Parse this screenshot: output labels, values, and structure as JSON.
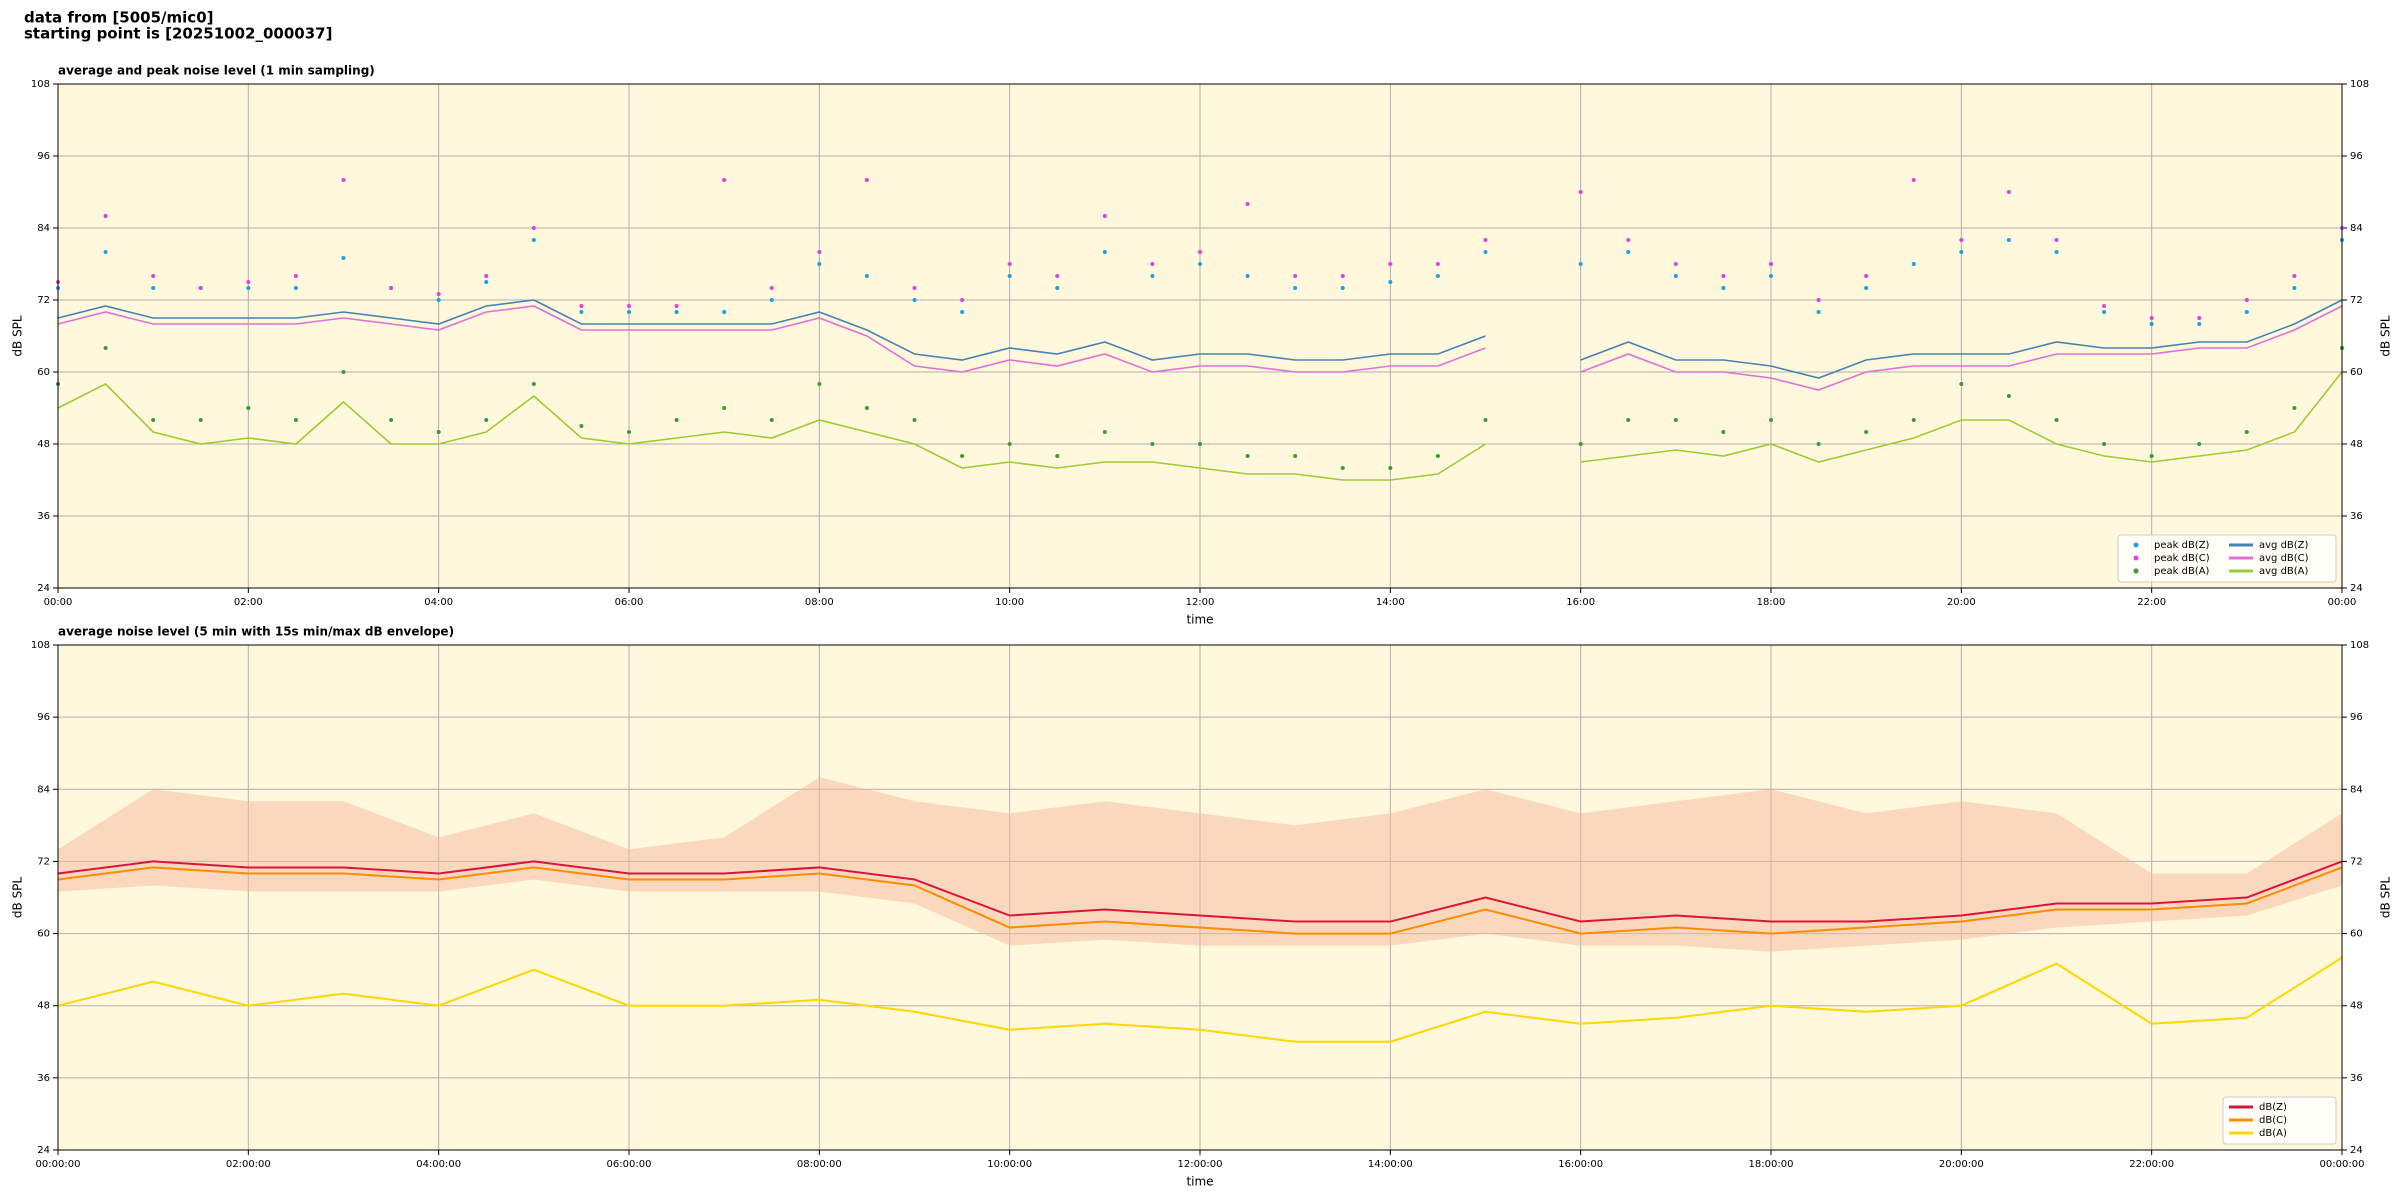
{
  "header": {
    "source": "data from [5005/mic0]",
    "start": "starting point is [20251002_000037]"
  },
  "chart_data": [
    {
      "type": "line",
      "title": "average and peak noise level (1 min sampling)",
      "x_label": "time",
      "y_label": "dB SPL",
      "y2_label": "dB SPL",
      "background": "#fff8dc",
      "grid": true,
      "legend": "lower right",
      "legend_columns": 2,
      "x": [
        0,
        0.5,
        1,
        1.5,
        2,
        2.5,
        3,
        3.5,
        4,
        4.5,
        5,
        5.5,
        6,
        6.5,
        7,
        7.5,
        8,
        8.5,
        9,
        9.5,
        10,
        10.5,
        11,
        11.5,
        12,
        12.5,
        13,
        13.5,
        14,
        14.5,
        15,
        15.5,
        16,
        16.5,
        17,
        17.5,
        18,
        18.5,
        19,
        19.5,
        20,
        20.5,
        21,
        21.5,
        22,
        22.5,
        23,
        23.5,
        24
      ],
      "xlim": [
        0,
        24
      ],
      "xticks": [
        {
          "value": 0,
          "label": "00:00"
        },
        {
          "value": 2,
          "label": "02:00"
        },
        {
          "value": 4,
          "label": "04:00"
        },
        {
          "value": 6,
          "label": "06:00"
        },
        {
          "value": 8,
          "label": "08:00"
        },
        {
          "value": 10,
          "label": "10:00"
        },
        {
          "value": 12,
          "label": "12:00"
        },
        {
          "value": 14,
          "label": "14:00"
        },
        {
          "value": 16,
          "label": "16:00"
        },
        {
          "value": 18,
          "label": "18:00"
        },
        {
          "value": 20,
          "label": "20:00"
        },
        {
          "value": 22,
          "label": "22:00"
        },
        {
          "value": 24,
          "label": "00:00"
        }
      ],
      "ylim": [
        24,
        108
      ],
      "yticks": [
        24,
        36,
        48,
        60,
        72,
        84,
        96,
        108
      ],
      "y2lim": [
        24,
        108
      ],
      "y2ticks": [
        24,
        36,
        48,
        60,
        72,
        84,
        96,
        108
      ],
      "series": [
        {
          "name": "peak dB(Z)",
          "kind": "scatter",
          "color": "#1f9fe0",
          "values": [
            74,
            80,
            74,
            74,
            74,
            74,
            79,
            74,
            72,
            75,
            82,
            70,
            70,
            70,
            70,
            72,
            78,
            76,
            72,
            70,
            76,
            74,
            80,
            76,
            78,
            76,
            74,
            74,
            75,
            76,
            80,
            null,
            78,
            80,
            76,
            74,
            76,
            70,
            74,
            78,
            80,
            82,
            80,
            70,
            68,
            68,
            70,
            74,
            82
          ]
        },
        {
          "name": "peak dB(C)",
          "kind": "scatter",
          "color": "#e040e0",
          "values": [
            75,
            86,
            76,
            74,
            75,
            76,
            92,
            74,
            73,
            76,
            84,
            71,
            71,
            71,
            92,
            74,
            80,
            92,
            74,
            72,
            78,
            76,
            86,
            78,
            80,
            88,
            76,
            76,
            78,
            78,
            82,
            null,
            90,
            82,
            78,
            76,
            78,
            72,
            76,
            92,
            82,
            90,
            82,
            71,
            69,
            69,
            72,
            76,
            84
          ]
        },
        {
          "name": "peak dB(A)",
          "kind": "scatter",
          "color": "#3a9a3a",
          "values": [
            58,
            64,
            52,
            52,
            54,
            52,
            60,
            52,
            50,
            52,
            58,
            51,
            50,
            52,
            54,
            52,
            58,
            54,
            52,
            46,
            48,
            46,
            50,
            48,
            48,
            46,
            46,
            44,
            44,
            46,
            52,
            null,
            48,
            52,
            52,
            50,
            52,
            48,
            50,
            52,
            58,
            56,
            52,
            48,
            46,
            48,
            50,
            54,
            64
          ]
        },
        {
          "name": "avg dB(Z)",
          "kind": "line",
          "color": "#4682b4",
          "values": [
            69,
            71,
            69,
            69,
            69,
            69,
            70,
            69,
            68,
            71,
            72,
            68,
            68,
            68,
            68,
            68,
            70,
            67,
            63,
            62,
            64,
            63,
            65,
            62,
            63,
            63,
            62,
            62,
            63,
            63,
            66,
            null,
            62,
            65,
            62,
            62,
            61,
            59,
            62,
            63,
            63,
            63,
            65,
            64,
            64,
            65,
            65,
            68,
            72
          ]
        },
        {
          "name": "avg dB(C)",
          "kind": "line",
          "color": "#e070d8",
          "values": [
            68,
            70,
            68,
            68,
            68,
            68,
            69,
            68,
            67,
            70,
            71,
            67,
            67,
            67,
            67,
            67,
            69,
            66,
            61,
            60,
            62,
            61,
            63,
            60,
            61,
            61,
            60,
            60,
            61,
            61,
            64,
            null,
            60,
            63,
            60,
            60,
            59,
            57,
            60,
            61,
            61,
            61,
            63,
            63,
            63,
            64,
            64,
            67,
            71
          ]
        },
        {
          "name": "avg dB(A)",
          "kind": "line",
          "color": "#9acd32",
          "values": [
            54,
            58,
            50,
            48,
            49,
            48,
            55,
            48,
            48,
            50,
            56,
            49,
            48,
            49,
            50,
            49,
            52,
            50,
            48,
            44,
            45,
            44,
            45,
            45,
            44,
            43,
            43,
            42,
            42,
            43,
            48,
            null,
            45,
            46,
            47,
            46,
            48,
            45,
            47,
            49,
            52,
            52,
            48,
            46,
            45,
            46,
            47,
            50,
            60
          ]
        }
      ]
    },
    {
      "type": "line",
      "title": "average noise level (5 min with 15s min/max dB envelope)",
      "x_label": "time",
      "y_label": "dB SPL",
      "y2_label": "dB SPL",
      "background": "#fff8dc",
      "grid": true,
      "legend": "lower right",
      "legend_columns": 1,
      "x": [
        0,
        1,
        2,
        3,
        4,
        5,
        6,
        7,
        8,
        9,
        10,
        11,
        12,
        13,
        14,
        15,
        16,
        17,
        18,
        19,
        20,
        21,
        22,
        23,
        24
      ],
      "xlim": [
        0,
        24
      ],
      "xticks": [
        {
          "value": 0,
          "label": "00:00:00"
        },
        {
          "value": 2,
          "label": "02:00:00"
        },
        {
          "value": 4,
          "label": "04:00:00"
        },
        {
          "value": 6,
          "label": "06:00:00"
        },
        {
          "value": 8,
          "label": "08:00:00"
        },
        {
          "value": 10,
          "label": "10:00:00"
        },
        {
          "value": 12,
          "label": "12:00:00"
        },
        {
          "value": 14,
          "label": "14:00:00"
        },
        {
          "value": 16,
          "label": "16:00:00"
        },
        {
          "value": 18,
          "label": "18:00:00"
        },
        {
          "value": 20,
          "label": "20:00:00"
        },
        {
          "value": 22,
          "label": "22:00:00"
        },
        {
          "value": 24,
          "label": "00:00:00"
        }
      ],
      "ylim": [
        24,
        108
      ],
      "yticks": [
        24,
        36,
        48,
        60,
        72,
        84,
        96,
        108
      ],
      "y2lim": [
        24,
        108
      ],
      "y2ticks": [
        24,
        36,
        48,
        60,
        72,
        84,
        96,
        108
      ],
      "envelope": {
        "color": "#f5b8a0",
        "upper": [
          74,
          84,
          82,
          82,
          76,
          80,
          74,
          76,
          86,
          82,
          80,
          82,
          80,
          78,
          80,
          84,
          80,
          82,
          84,
          80,
          82,
          80,
          70,
          70,
          80
        ],
        "lower": [
          67,
          68,
          67,
          67,
          67,
          69,
          67,
          67,
          67,
          65,
          58,
          59,
          58,
          58,
          58,
          60,
          58,
          58,
          57,
          58,
          59,
          61,
          62,
          63,
          68
        ]
      },
      "series": [
        {
          "name": "dB(Z)",
          "kind": "line",
          "color": "#dc143c",
          "values": [
            70,
            72,
            71,
            71,
            70,
            72,
            70,
            70,
            71,
            69,
            63,
            64,
            63,
            62,
            62,
            66,
            62,
            63,
            62,
            62,
            63,
            65,
            65,
            66,
            72
          ]
        },
        {
          "name": "dB(C)",
          "kind": "line",
          "color": "#ff8c00",
          "values": [
            69,
            71,
            70,
            70,
            69,
            71,
            69,
            69,
            70,
            68,
            61,
            62,
            61,
            60,
            60,
            64,
            60,
            61,
            60,
            61,
            62,
            64,
            64,
            65,
            71
          ]
        },
        {
          "name": "dB(A)",
          "kind": "line",
          "color": "#ffd700",
          "values": [
            48,
            52,
            48,
            50,
            48,
            54,
            48,
            48,
            49,
            47,
            44,
            45,
            44,
            42,
            42,
            47,
            45,
            46,
            48,
            47,
            48,
            55,
            45,
            46,
            56
          ]
        }
      ]
    }
  ]
}
